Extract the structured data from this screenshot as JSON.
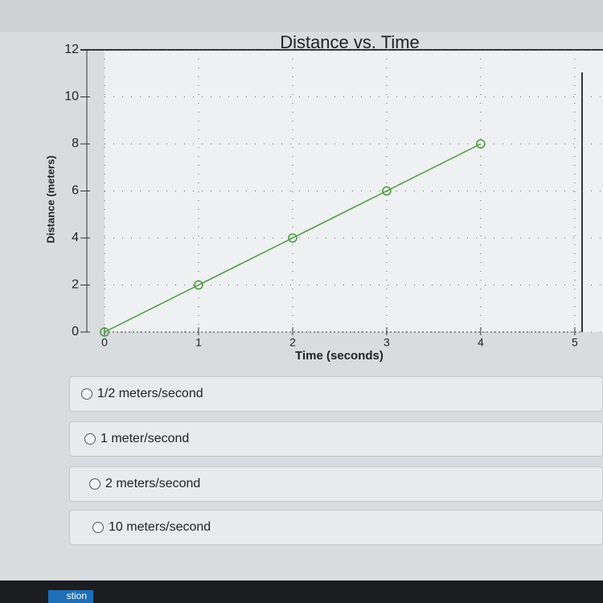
{
  "chart_data": {
    "type": "line",
    "title": "Distance vs. Time",
    "x_label": "Time (seconds)",
    "y_label": "Distance (meters)",
    "series": [
      {
        "name": "distance",
        "color": "#4a9a3c",
        "x": [
          0,
          1,
          2,
          3,
          4
        ],
        "values": [
          0,
          2,
          4,
          6,
          8
        ]
      }
    ],
    "xlim": [
      0,
      5.3
    ],
    "xticks": [
      0,
      1,
      2,
      3,
      4,
      5
    ],
    "ylim": [
      0,
      12
    ],
    "yticks": [
      0,
      2,
      4,
      6,
      8,
      10,
      12
    ],
    "grid": true
  },
  "question": {
    "options": [
      "1/2 meters/second",
      "1 meter/second",
      "2 meters/second",
      "10 meters/second"
    ]
  },
  "footer": {
    "button": "stion"
  }
}
